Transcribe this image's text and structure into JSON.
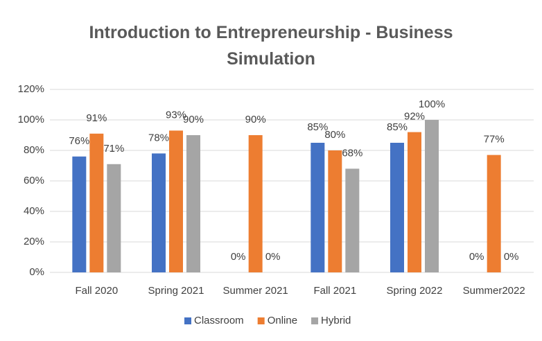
{
  "chart_data": {
    "type": "bar",
    "title": "Introduction to Entrepreneurship - Business Simulation",
    "categories": [
      "Fall 2020",
      "Spring 2021",
      "Summer 2021",
      "Fall 2021",
      "Spring 2022",
      "Summer2022"
    ],
    "series": [
      {
        "name": "Classroom",
        "color": "#4472c4",
        "values": [
          76,
          78,
          0,
          85,
          85,
          0
        ],
        "value_labels": [
          "76%",
          "78%",
          "0%",
          "85%",
          "85%",
          "0%"
        ]
      },
      {
        "name": "Online",
        "color": "#ed7d31",
        "values": [
          91,
          93,
          90,
          80,
          92,
          77
        ],
        "value_labels": [
          "91%",
          "93%",
          "90%",
          "80%",
          "92%",
          "77%"
        ]
      },
      {
        "name": "Hybrid",
        "color": "#a5a5a5",
        "values": [
          71,
          90,
          0,
          68,
          100,
          0
        ],
        "value_labels": [
          "71%",
          "90%",
          "0%",
          "68%",
          "100%",
          "0%"
        ]
      }
    ],
    "ylim": [
      0,
      120
    ],
    "yticks": [
      {
        "value": 0,
        "label": "0%"
      },
      {
        "value": 20,
        "label": "20%"
      },
      {
        "value": 40,
        "label": "40%"
      },
      {
        "value": 60,
        "label": "60%"
      },
      {
        "value": 80,
        "label": "80%"
      },
      {
        "value": 100,
        "label": "100%"
      },
      {
        "value": 120,
        "label": "120%"
      }
    ],
    "grid": true,
    "legend": "bottom"
  }
}
